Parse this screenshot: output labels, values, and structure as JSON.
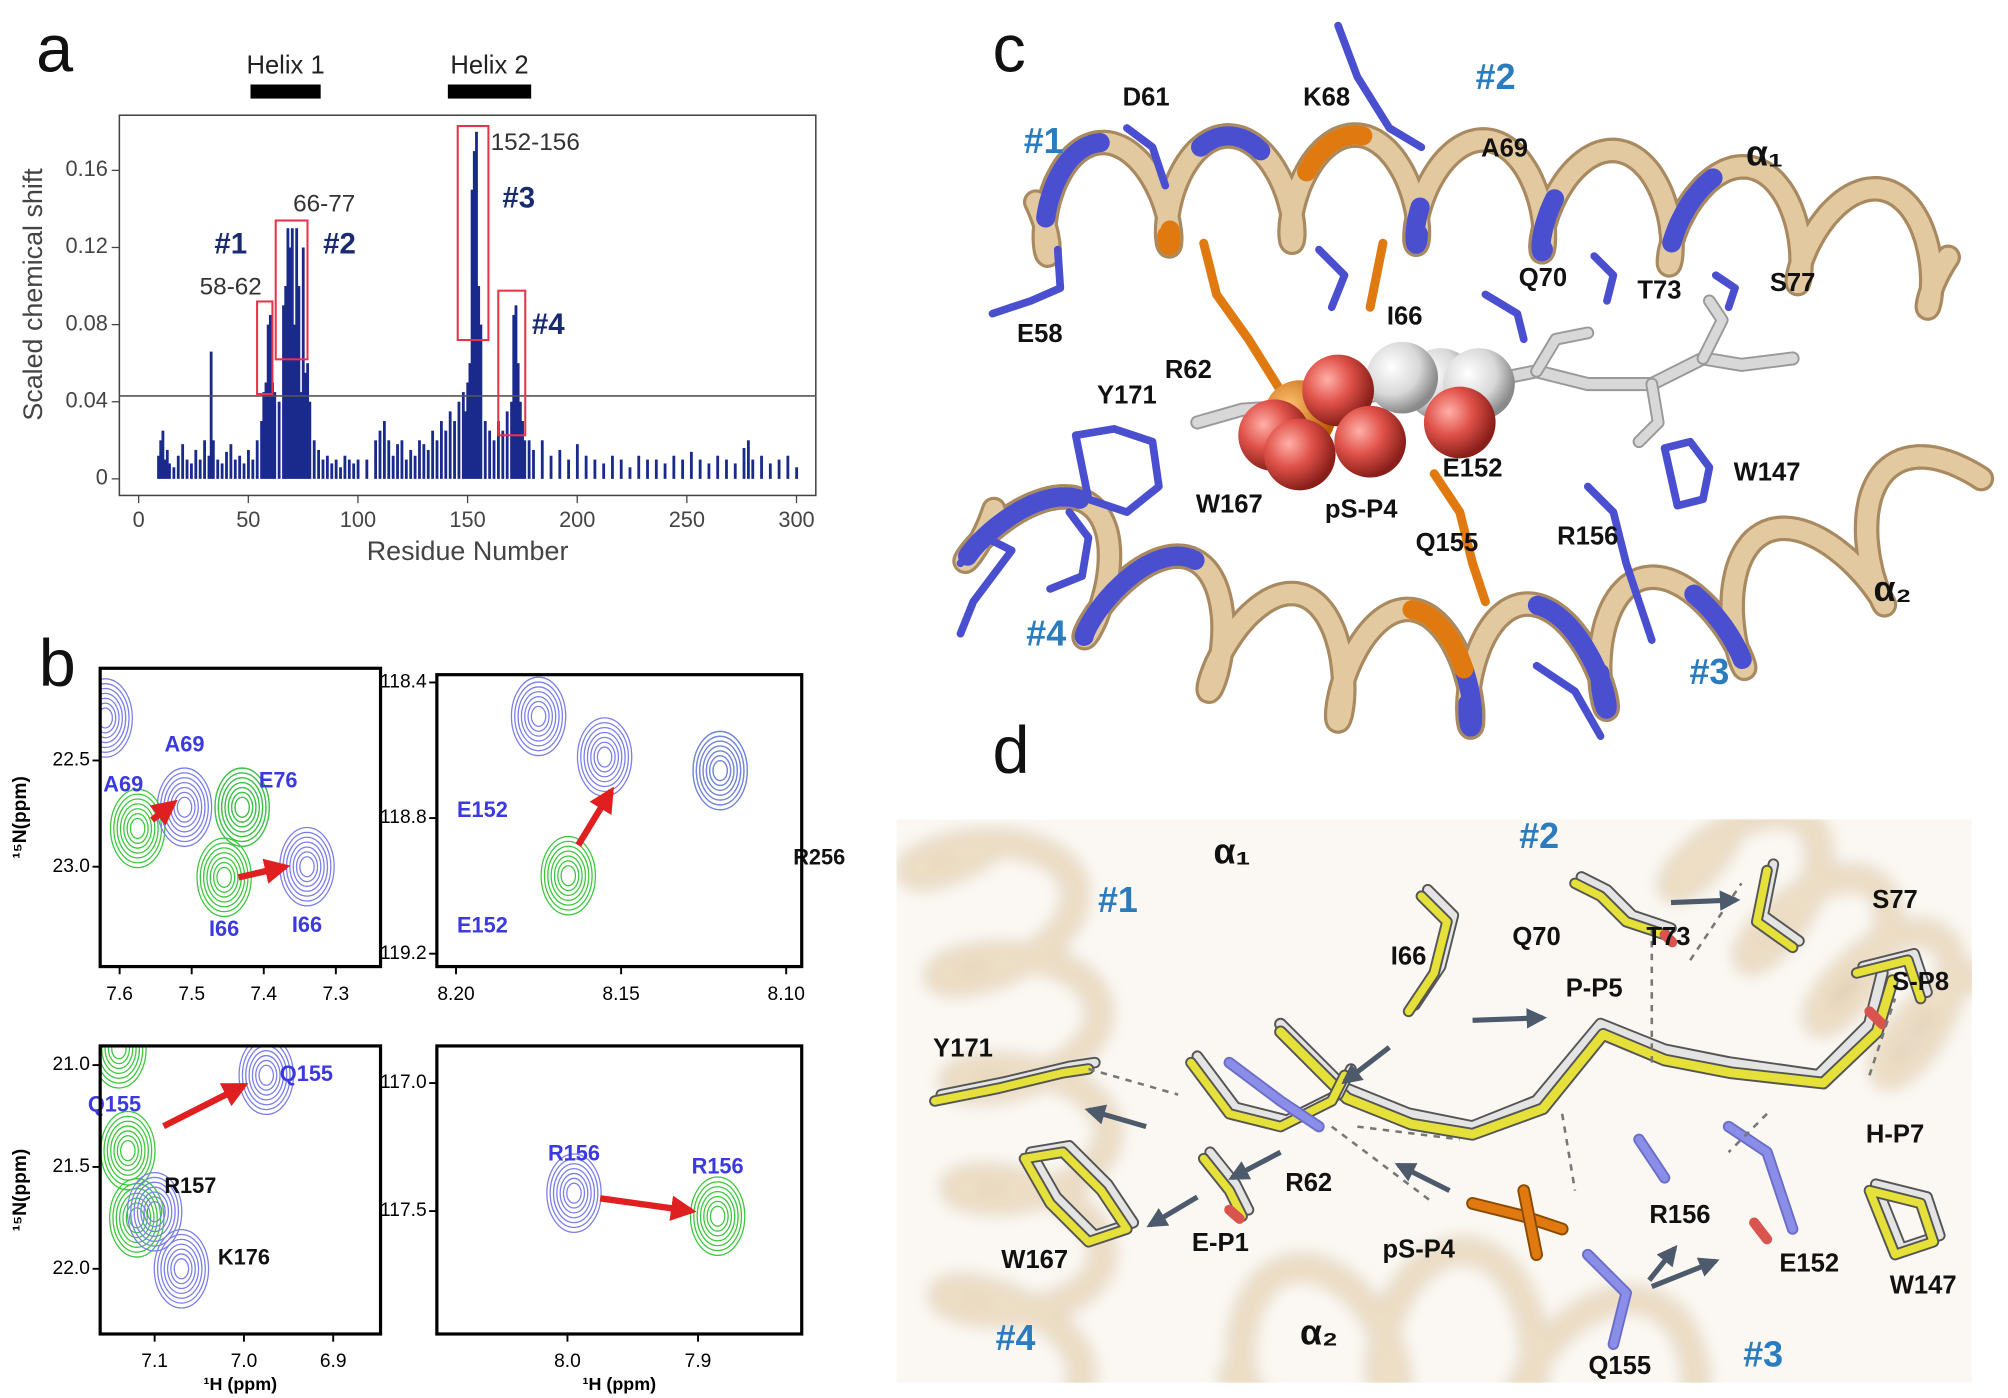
{
  "panel_labels": [
    "a",
    "b",
    "c",
    "d"
  ],
  "chart_data": {
    "type": "bar",
    "color": "#1a2a8c",
    "x": [
      9,
      10,
      11,
      12,
      13,
      14,
      16,
      18,
      20,
      22,
      24,
      26,
      28,
      30,
      32,
      33,
      34,
      36,
      38,
      40,
      42,
      44,
      46,
      48,
      50,
      52,
      54,
      56,
      57,
      58,
      59,
      60,
      61,
      62,
      64,
      66,
      67,
      68,
      69,
      70,
      71,
      72,
      73,
      74,
      75,
      76,
      77,
      78,
      80,
      82,
      84,
      86,
      88,
      90,
      92,
      94,
      96,
      98,
      100,
      104,
      108,
      110,
      112,
      114,
      116,
      118,
      120,
      122,
      124,
      126,
      128,
      130,
      132,
      134,
      136,
      138,
      140,
      142,
      144,
      146,
      148,
      149,
      150,
      151,
      152,
      153,
      154,
      155,
      156,
      158,
      160,
      162,
      164,
      166,
      168,
      170,
      171,
      172,
      173,
      174,
      175,
      176,
      178,
      180,
      184,
      188,
      192,
      196,
      200,
      204,
      208,
      212,
      216,
      220,
      224,
      228,
      232,
      236,
      240,
      244,
      248,
      252,
      256,
      260,
      264,
      268,
      272,
      276,
      278,
      280,
      284,
      288,
      292,
      296,
      300
    ],
    "values": [
      0.012,
      0.02,
      0.025,
      0.01,
      0.015,
      0.008,
      0.006,
      0.012,
      0.018,
      0.01,
      0.008,
      0.015,
      0.01,
      0.02,
      0.012,
      0.066,
      0.02,
      0.01,
      0.008,
      0.014,
      0.018,
      0.01,
      0.012,
      0.008,
      0.015,
      0.01,
      0.02,
      0.03,
      0.045,
      0.05,
      0.08,
      0.085,
      0.05,
      0.045,
      0.04,
      0.09,
      0.1,
      0.13,
      0.12,
      0.13,
      0.08,
      0.13,
      0.1,
      0.045,
      0.12,
      0.055,
      0.06,
      0.04,
      0.02,
      0.015,
      0.01,
      0.012,
      0.008,
      0.01,
      0.006,
      0.012,
      0.01,
      0.008,
      0.01,
      0.01,
      0.02,
      0.025,
      0.03,
      0.02,
      0.012,
      0.018,
      0.02,
      0.01,
      0.015,
      0.012,
      0.02,
      0.018,
      0.015,
      0.025,
      0.02,
      0.03,
      0.025,
      0.035,
      0.03,
      0.04,
      0.045,
      0.035,
      0.05,
      0.06,
      0.15,
      0.17,
      0.18,
      0.1,
      0.08,
      0.03,
      0.025,
      0.02,
      0.03,
      0.025,
      0.035,
      0.04,
      0.085,
      0.09,
      0.06,
      0.04,
      0.03,
      0.02,
      0.02,
      0.015,
      0.02,
      0.012,
      0.015,
      0.01,
      0.018,
      0.012,
      0.01,
      0.008,
      0.012,
      0.01,
      0.006,
      0.012,
      0.01,
      0.01,
      0.008,
      0.012,
      0.01,
      0.014,
      0.01,
      0.008,
      0.012,
      0.01,
      0.008,
      0.016,
      0.02,
      0.01,
      0.012,
      0.008,
      0.01,
      0.012,
      0.006
    ],
    "xlim": [
      -8.8,
      308.8
    ],
    "ylim": [
      -0.0086,
      0.1886
    ],
    "xticks": [
      0,
      50,
      100,
      150,
      200,
      250,
      300
    ],
    "yticks": [
      0,
      0.04,
      0.08,
      0.12,
      0.16
    ],
    "xlabel": "Residue Number",
    "ylabel": "Scaled chemical shift",
    "threshold": 0.043,
    "helices": [
      {
        "label": "Helix 1",
        "start": 51,
        "end": 83
      },
      {
        "label": "Helix 2",
        "start": 141,
        "end": 179
      }
    ],
    "highlight_boxes": [
      {
        "label": "#1",
        "range": "58-62",
        "x": [
          54,
          61
        ],
        "y": [
          0.044,
          0.092
        ]
      },
      {
        "label": "#2",
        "range": "66-77",
        "x": [
          62.5,
          77
        ],
        "y": [
          0.062,
          0.134
        ]
      },
      {
        "label": "#3",
        "range": "152-156",
        "x": [
          145.5,
          159.5
        ],
        "y": [
          0.072,
          0.183
        ]
      },
      {
        "label": "#4",
        "x": [
          164,
          176.3
        ],
        "y": [
          0.0226,
          0.0976
        ]
      }
    ]
  },
  "nmr_panels": [
    {
      "xlim": [
        7.627,
        7.238
      ],
      "ylim": [
        23.47,
        22.066
      ],
      "xticks": [
        7.6,
        7.5,
        7.4,
        7.3
      ],
      "yticks": [
        22.5,
        {
          "value": 23,
          "label": "23.0"
        }
      ],
      "ylabel": "¹⁵N(ppm)",
      "peaks": [
        {
          "x": 7.575,
          "y": 22.82,
          "color": "#3cc83c"
        },
        {
          "x": 7.51,
          "y": 22.72,
          "color": "#7b7fe8"
        },
        {
          "x": 7.43,
          "y": 22.72,
          "color": "#7b7fe8"
        },
        {
          "x": 7.43,
          "y": 22.72,
          "color": "#3cc83c"
        },
        {
          "x": 7.455,
          "y": 23.05,
          "color": "#3cc83c"
        },
        {
          "x": 7.34,
          "y": 23.0,
          "color": "#7b7fe8"
        },
        {
          "x": 7.62,
          "y": 22.3,
          "color": "#7b7fe8"
        }
      ],
      "labels": [
        {
          "text": "A69",
          "x": 7.595,
          "y": 22.62,
          "color": "#3a3ae0"
        },
        {
          "text": "A69",
          "x": 7.51,
          "y": 22.43,
          "color": "#3a3ae0"
        },
        {
          "text": "E76",
          "x": 7.38,
          "y": 22.6,
          "color": "#3a3ae0"
        },
        {
          "text": "I66",
          "x": 7.455,
          "y": 23.3,
          "color": "#3a3ae0"
        },
        {
          "text": "I66",
          "x": 7.34,
          "y": 23.28,
          "color": "#3a3ae0"
        }
      ],
      "arrows": [
        {
          "x": [
            7.555,
            7.525
          ],
          "y": [
            22.78,
            22.7
          ]
        },
        {
          "x": [
            7.435,
            7.37
          ],
          "y": [
            23.05,
            23.0
          ]
        }
      ]
    },
    {
      "xlim": [
        8.2058,
        8.0953
      ],
      "ylim": [
        119.238,
        118.377
      ],
      "xticks": [
        {
          "value": 8.2,
          "label": "8.20"
        },
        8.15,
        {
          "value": 8.1,
          "label": "8.10"
        }
      ],
      "yticks": [
        118.4,
        118.8,
        119.2
      ],
      "peaks": [
        {
          "x": 8.166,
          "y": 118.97,
          "color": "#3cc83c"
        },
        {
          "x": 8.12,
          "y": 118.66,
          "color": "#3cc83c"
        },
        {
          "x": 8.12,
          "y": 118.66,
          "color": "#7b7fe8"
        },
        {
          "x": 8.155,
          "y": 118.62,
          "color": "#7b7fe8"
        },
        {
          "x": 8.175,
          "y": 118.5,
          "color": "#7b7fe8"
        }
      ],
      "labels": [
        {
          "text": "E152",
          "x": 8.192,
          "y": 118.78,
          "color": "#3a3ae0"
        },
        {
          "text": "E152",
          "x": 8.192,
          "y": 119.12,
          "color": "#3a3ae0"
        },
        {
          "text": "R256",
          "x": 8.09,
          "y": 118.92,
          "color": "#111111"
        }
      ],
      "arrows": [
        {
          "x": [
            8.163,
            8.153
          ],
          "y": [
            118.88,
            118.72
          ]
        }
      ]
    },
    {
      "xlim": [
        7.161,
        6.847
      ],
      "ylim": [
        22.32,
        20.906
      ],
      "xticks": [
        7.1,
        {
          "value": 7,
          "label": "7.0"
        },
        6.9
      ],
      "yticks": [
        {
          "value": 21,
          "label": "21.0"
        },
        21.5,
        {
          "value": 22,
          "label": "22.0"
        }
      ],
      "ylabel": "¹⁵N(ppm)",
      "xlabel": "¹H (ppm)",
      "peaks": [
        {
          "x": 6.975,
          "y": 21.05,
          "color": "#7b7fe8"
        },
        {
          "x": 7.13,
          "y": 21.42,
          "color": "#3cc83c"
        },
        {
          "x": 7.12,
          "y": 21.75,
          "color": "#3cc83c"
        },
        {
          "x": 7.1,
          "y": 21.72,
          "color": "#7b7fe8"
        },
        {
          "x": 7.07,
          "y": 22.0,
          "color": "#7b7fe8"
        },
        {
          "x": 7.14,
          "y": 20.92,
          "color": "#3cc83c"
        }
      ],
      "labels": [
        {
          "text": "Q155",
          "x": 6.93,
          "y": 21.05,
          "color": "#3a3ae0"
        },
        {
          "text": "Q155",
          "x": 7.145,
          "y": 21.2,
          "color": "#3a3ae0"
        },
        {
          "text": "R157",
          "x": 7.06,
          "y": 21.6,
          "color": "#111111"
        },
        {
          "text": "K176",
          "x": 7.0,
          "y": 21.95,
          "color": "#111111"
        }
      ],
      "arrows": [
        {
          "x": [
            7.09,
            7.0
          ],
          "y": [
            21.3,
            21.1
          ]
        }
      ]
    },
    {
      "xlim": [
        8.1,
        7.8206
      ],
      "ylim": [
        117.98,
        116.855
      ],
      "xticks": [
        {
          "value": 8,
          "label": "8.0"
        },
        7.9
      ],
      "yticks": [
        {
          "value": 117,
          "label": "117.0"
        },
        117.5
      ],
      "xlabel": "¹H (ppm)",
      "peaks": [
        {
          "x": 7.995,
          "y": 117.43,
          "color": "#7b7fe8"
        },
        {
          "x": 7.885,
          "y": 117.52,
          "color": "#3cc83c"
        }
      ],
      "labels": [
        {
          "text": "R156",
          "x": 7.995,
          "y": 117.28,
          "color": "#3a3ae0"
        },
        {
          "text": "R156",
          "x": 7.885,
          "y": 117.33,
          "color": "#3a3ae0"
        }
      ],
      "arrows": [
        {
          "x": [
            7.975,
            7.905
          ],
          "y": [
            117.45,
            117.5
          ]
        }
      ]
    }
  ],
  "structure_c": {
    "sites": [
      "#1",
      "#2",
      "#3",
      "#4"
    ],
    "helices": [
      "α₁",
      "α₂"
    ],
    "residues": [
      "D61",
      "K68",
      "A69",
      "Q70",
      "T73",
      "S77",
      "E58",
      "R62",
      "I66",
      "Y171",
      "pS-P4",
      "E152",
      "W147",
      "W167",
      "Q155",
      "R156"
    ]
  },
  "structure_d": {
    "sites": [
      "#1",
      "#2",
      "#3",
      "#4"
    ],
    "helices": [
      "α₁",
      "α₂"
    ],
    "residues": [
      "I66",
      "Q70",
      "T73",
      "S77",
      "S-P8",
      "P-P5",
      "Y171",
      "H-P7",
      "R62",
      "R156",
      "W167",
      "E-P1",
      "pS-P4",
      "E152",
      "W147",
      "Q155"
    ]
  }
}
